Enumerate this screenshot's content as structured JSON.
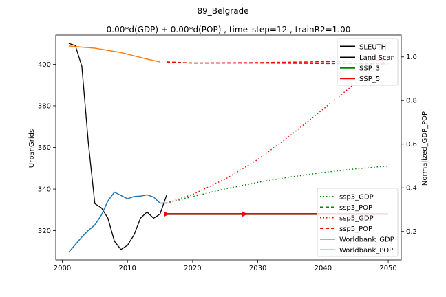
{
  "chart_data": {
    "type": "line",
    "suptitle": "89_Belgrade",
    "title": "0.00*d(GDP) + 0.00*d(POP) , time_step=12 , trainR2=1.00",
    "xlabel": "",
    "ylabel_left": "UrbanGrids",
    "ylabel_right": "Normalized_GDP_POP",
    "xlim": [
      1999,
      2052
    ],
    "ylim_left": [
      306,
      414
    ],
    "ylim_right": [
      0.07,
      1.1
    ],
    "x_ticks": [
      2000,
      2010,
      2020,
      2030,
      2040,
      2050
    ],
    "y_left_ticks": [
      320,
      340,
      360,
      380,
      400
    ],
    "y_right_ticks": [
      0.2,
      0.4,
      0.6,
      0.8,
      1.0
    ],
    "legend_upper": {
      "placement": "top-right",
      "entries": [
        {
          "label": "SLEUTH",
          "color": "#000000",
          "style": "solid",
          "width": 2.5
        },
        {
          "label": "Land Scan",
          "color": "#000000",
          "style": "solid",
          "width": 1.5
        },
        {
          "label": "SSP_3",
          "color": "#008000",
          "style": "solid",
          "width": 2
        },
        {
          "label": "SSP_5",
          "color": "#ff0000",
          "style": "solid",
          "width": 2
        }
      ]
    },
    "legend_lower": {
      "placement": "lower-right",
      "entries": [
        {
          "label": "ssp3_GDP",
          "color": "#008000",
          "style": "dotted"
        },
        {
          "label": "ssp3_POP",
          "color": "#008000",
          "style": "dashed"
        },
        {
          "label": "ssp5_GDP",
          "color": "#ff0000",
          "style": "dotted"
        },
        {
          "label": "ssp5_POP",
          "color": "#ff0000",
          "style": "dashed"
        },
        {
          "label": "Worldbank_GDP",
          "color": "#1f77b4",
          "style": "solid"
        },
        {
          "label": "Worldbank_POP",
          "color": "#ff7f0e",
          "style": "solid"
        }
      ]
    },
    "series": [
      {
        "name": "Land Scan",
        "axis": "left",
        "color": "#000000",
        "style": "solid",
        "width": 1.3,
        "x": [
          2001,
          2002,
          2003,
          2004,
          2005,
          2006,
          2007,
          2008,
          2009,
          2010,
          2011,
          2012,
          2013,
          2014,
          2015,
          2016
        ],
        "y": [
          410,
          409,
          399,
          362,
          333,
          331,
          326,
          315,
          311,
          313,
          318,
          326,
          329,
          326,
          328,
          337
        ]
      },
      {
        "name": "SLEUTH",
        "axis": "left",
        "color": "#000000",
        "style": "solid",
        "width": 2.5,
        "x": [
          2016,
          2050
        ],
        "y": [
          328,
          328
        ]
      },
      {
        "name": "SSP_3",
        "axis": "left",
        "color": "#008000",
        "style": "solid",
        "width": 2,
        "x": [
          2016,
          2050
        ],
        "y": [
          328,
          328
        ]
      },
      {
        "name": "SSP_5",
        "axis": "left",
        "color": "#ff0000",
        "style": "solid",
        "width": 2,
        "x": [
          2016,
          2050
        ],
        "y": [
          328,
          328
        ],
        "markers": [
          2016,
          2028
        ]
      },
      {
        "name": "Worldbank_GDP",
        "axis": "right",
        "color": "#1f77b4",
        "style": "solid",
        "width": 1.5,
        "x": [
          2001,
          2002,
          2003,
          2004,
          2005,
          2006,
          2007,
          2008,
          2009,
          2010,
          2011,
          2012,
          2013,
          2014,
          2015,
          2016
        ],
        "y": [
          0.105,
          0.14,
          0.175,
          0.205,
          0.23,
          0.275,
          0.34,
          0.38,
          0.365,
          0.35,
          0.36,
          0.362,
          0.368,
          0.358,
          0.33,
          0.33
        ]
      },
      {
        "name": "Worldbank_POP",
        "axis": "right",
        "color": "#ff7f0e",
        "style": "solid",
        "width": 1.5,
        "x": [
          2001,
          2003,
          2005,
          2007,
          2009,
          2011,
          2013,
          2015
        ],
        "y": [
          1.05,
          1.045,
          1.04,
          1.03,
          1.02,
          1.005,
          0.99,
          0.977
        ]
      },
      {
        "name": "ssp3_GDP",
        "axis": "right",
        "color": "#008000",
        "style": "dotted",
        "width": 1.5,
        "x": [
          2016,
          2020,
          2025,
          2030,
          2035,
          2040,
          2045,
          2050
        ],
        "y": [
          0.33,
          0.36,
          0.395,
          0.425,
          0.45,
          0.47,
          0.487,
          0.5
        ]
      },
      {
        "name": "ssp3_POP",
        "axis": "right",
        "color": "#008000",
        "style": "dashed",
        "width": 1.5,
        "x": [
          2016,
          2020,
          2030,
          2040,
          2050
        ],
        "y": [
          0.977,
          0.972,
          0.972,
          0.97,
          0.968
        ]
      },
      {
        "name": "ssp5_GDP",
        "axis": "right",
        "color": "#ff0000",
        "style": "dotted",
        "width": 1.5,
        "x": [
          2016,
          2020,
          2025,
          2030,
          2035,
          2040,
          2045,
          2050
        ],
        "y": [
          0.33,
          0.37,
          0.44,
          0.53,
          0.64,
          0.76,
          0.88,
          0.99
        ]
      },
      {
        "name": "ssp5_POP",
        "axis": "right",
        "color": "#ff0000",
        "style": "dashed",
        "width": 1.5,
        "x": [
          2016,
          2020,
          2030,
          2040,
          2050
        ],
        "y": [
          0.977,
          0.972,
          0.974,
          0.978,
          0.985
        ]
      }
    ]
  }
}
